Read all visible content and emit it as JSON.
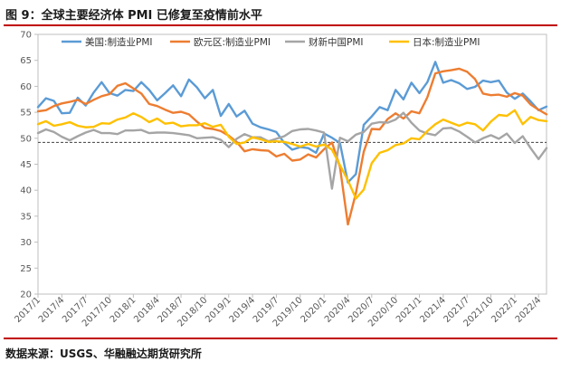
{
  "figure": {
    "title": "图 9：全球主要经济体 PMI 已修复至疫情前水平",
    "source": "数据来源：USGS、华融融达期货研究所"
  },
  "colors": {
    "accent_rule": "#c00000",
    "us": "#5b9bd5",
    "euro": "#ed7d31",
    "caixin": "#a5a5a5",
    "japan": "#ffc000"
  },
  "chart_data": {
    "type": "line",
    "title": "",
    "xlabel": "",
    "ylabel": "",
    "ylim": [
      20,
      70
    ],
    "yticks": [
      20,
      25,
      30,
      35,
      40,
      45,
      50,
      55,
      60,
      65,
      70
    ],
    "reference_line": 49.2,
    "legend_position": "top",
    "x_tick_labels": [
      "2017/1",
      "2017/4",
      "2017/7",
      "2017/10",
      "2018/1",
      "2018/4",
      "2018/7",
      "2018/10",
      "2019/1",
      "2019/4",
      "2019/7",
      "2019/10",
      "2020/1",
      "2020/4",
      "2020/7",
      "2020/10",
      "2021/1",
      "2021/4",
      "2021/7",
      "2021/10",
      "2022/1",
      "2022/4"
    ],
    "x": [
      "2017/1",
      "2017/2",
      "2017/3",
      "2017/4",
      "2017/5",
      "2017/6",
      "2017/7",
      "2017/8",
      "2017/9",
      "2017/10",
      "2017/11",
      "2017/12",
      "2018/1",
      "2018/2",
      "2018/3",
      "2018/4",
      "2018/5",
      "2018/6",
      "2018/7",
      "2018/8",
      "2018/9",
      "2018/10",
      "2018/11",
      "2018/12",
      "2019/1",
      "2019/2",
      "2019/3",
      "2019/4",
      "2019/5",
      "2019/6",
      "2019/7",
      "2019/8",
      "2019/9",
      "2019/10",
      "2019/11",
      "2019/12",
      "2020/1",
      "2020/2",
      "2020/3",
      "2020/4",
      "2020/5",
      "2020/6",
      "2020/7",
      "2020/8",
      "2020/9",
      "2020/10",
      "2020/11",
      "2020/12",
      "2021/1",
      "2021/2",
      "2021/3",
      "2021/4",
      "2021/5",
      "2021/6",
      "2021/7",
      "2021/8",
      "2021/9",
      "2021/10",
      "2021/11",
      "2021/12",
      "2022/1",
      "2022/2",
      "2022/3",
      "2022/4",
      "2022/5"
    ],
    "series": [
      {
        "name": "美国:制造业PMI",
        "color": "#5b9bd5",
        "values": [
          56.0,
          57.7,
          57.2,
          54.8,
          54.9,
          57.8,
          56.3,
          58.8,
          60.8,
          58.7,
          58.2,
          59.3,
          59.1,
          60.8,
          59.3,
          57.3,
          58.7,
          60.2,
          58.1,
          61.3,
          59.8,
          57.7,
          59.3,
          54.3,
          56.6,
          54.2,
          55.3,
          52.8,
          52.1,
          51.7,
          51.2,
          49.1,
          47.8,
          48.3,
          48.1,
          47.2,
          50.9,
          50.1,
          49.1,
          41.5,
          43.1,
          52.6,
          54.2,
          56.0,
          55.4,
          59.3,
          57.5,
          60.7,
          58.7,
          60.8,
          64.7,
          60.7,
          61.2,
          60.6,
          59.5,
          59.9,
          61.1,
          60.8,
          61.1,
          58.8,
          57.6,
          58.6,
          57.1,
          55.4,
          56.1
        ]
      },
      {
        "name": "欧元区:制造业PMI",
        "color": "#ed7d31",
        "values": [
          55.2,
          55.4,
          56.2,
          56.7,
          57.0,
          57.4,
          56.6,
          57.4,
          58.1,
          58.5,
          60.1,
          60.6,
          59.6,
          58.6,
          56.6,
          56.2,
          55.5,
          54.9,
          55.1,
          54.6,
          53.2,
          52.0,
          51.8,
          51.4,
          50.5,
          49.3,
          47.5,
          47.9,
          47.7,
          47.6,
          46.5,
          47.0,
          45.7,
          45.9,
          46.9,
          46.3,
          47.9,
          49.2,
          44.5,
          33.4,
          39.4,
          47.4,
          51.8,
          51.7,
          53.7,
          54.8,
          53.8,
          55.2,
          54.8,
          57.9,
          62.5,
          62.9,
          63.1,
          63.4,
          62.8,
          61.4,
          58.6,
          58.3,
          58.4,
          58.0,
          58.7,
          58.2,
          56.5,
          55.5,
          54.6
        ]
      },
      {
        "name": "财新中国PMI",
        "color": "#a5a5a5",
        "values": [
          51.0,
          51.7,
          51.2,
          50.3,
          49.6,
          50.4,
          51.1,
          51.6,
          51.0,
          51.0,
          50.8,
          51.5,
          51.5,
          51.6,
          51.0,
          51.1,
          51.1,
          51.0,
          50.8,
          50.6,
          50.0,
          50.1,
          50.2,
          49.7,
          48.3,
          49.9,
          50.8,
          50.2,
          50.2,
          49.4,
          49.9,
          50.4,
          51.4,
          51.7,
          51.8,
          51.5,
          51.1,
          40.3,
          50.1,
          49.4,
          50.7,
          51.2,
          52.8,
          53.1,
          53.0,
          53.6,
          54.9,
          53.0,
          51.5,
          50.9,
          50.6,
          51.9,
          52.0,
          51.3,
          50.3,
          49.2,
          50.0,
          50.6,
          49.9,
          50.9,
          49.1,
          50.4,
          48.1,
          46.0,
          48.1
        ]
      },
      {
        "name": "日本:制造业PMI",
        "color": "#ffc000",
        "values": [
          52.7,
          53.3,
          52.4,
          52.7,
          53.1,
          52.4,
          52.1,
          52.2,
          52.9,
          52.8,
          53.6,
          54.0,
          54.8,
          54.1,
          53.1,
          53.8,
          52.8,
          53.0,
          52.3,
          52.5,
          52.5,
          52.9,
          52.2,
          52.6,
          50.3,
          48.9,
          49.2,
          50.2,
          49.8,
          49.3,
          49.4,
          49.3,
          48.9,
          48.4,
          48.9,
          48.4,
          48.8,
          47.8,
          44.8,
          41.9,
          38.4,
          40.1,
          45.2,
          47.2,
          47.7,
          48.7,
          49.0,
          50.0,
          49.8,
          51.4,
          52.7,
          53.6,
          53.0,
          52.4,
          53.0,
          52.7,
          51.5,
          53.2,
          54.5,
          54.3,
          55.4,
          52.7,
          54.1,
          53.5,
          53.3
        ]
      }
    ]
  }
}
